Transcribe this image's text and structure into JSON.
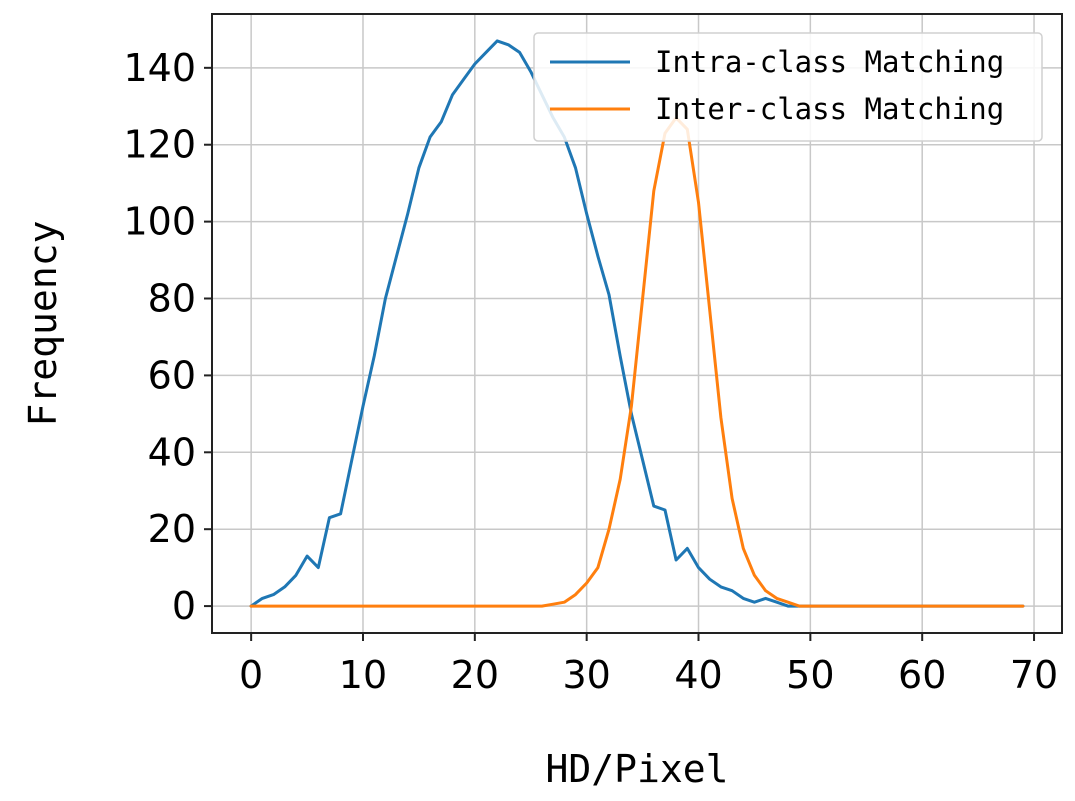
{
  "chart_data": {
    "type": "line",
    "title": "",
    "xlabel": "HD/Pixel",
    "ylabel": "Frequency",
    "xlim": [
      -3.5,
      72.5
    ],
    "ylim": [
      -7,
      154
    ],
    "xticks": [
      0,
      10,
      20,
      30,
      40,
      50,
      60,
      70
    ],
    "yticks": [
      0,
      20,
      40,
      60,
      80,
      100,
      120,
      140
    ],
    "grid": true,
    "legend_position": "top-right",
    "series": [
      {
        "name": "Intra-class Matching",
        "color": "#1f77b4",
        "x": [
          0,
          1,
          2,
          3,
          4,
          5,
          6,
          7,
          8,
          9,
          10,
          11,
          12,
          13,
          14,
          15,
          16,
          17,
          18,
          19,
          20,
          21,
          22,
          23,
          24,
          25,
          26,
          27,
          28,
          29,
          30,
          31,
          32,
          33,
          34,
          35,
          36,
          37,
          38,
          39,
          40,
          41,
          42,
          43,
          44,
          45,
          46,
          47,
          48,
          49,
          50,
          51,
          52,
          53,
          54,
          55,
          56,
          57,
          58,
          59,
          60,
          61,
          62,
          63,
          64,
          65,
          66,
          67,
          68,
          69
        ],
        "y": [
          0,
          2,
          3,
          5,
          8,
          13,
          10,
          23,
          24,
          38,
          52,
          65,
          80,
          91,
          102,
          114,
          122,
          126,
          133,
          137,
          141,
          144,
          147,
          146,
          144,
          139,
          133,
          127,
          122,
          114,
          102,
          91,
          81,
          65,
          50,
          38,
          26,
          25,
          12,
          15,
          10,
          7,
          5,
          4,
          2,
          1,
          2,
          1,
          0,
          0,
          0,
          0,
          0,
          0,
          0,
          0,
          0,
          0,
          0,
          0,
          0,
          0,
          0,
          0,
          0,
          0,
          0,
          0,
          0,
          0
        ]
      },
      {
        "name": "Inter-class Matching",
        "color": "#ff7f0e",
        "x": [
          0,
          1,
          2,
          3,
          4,
          5,
          6,
          7,
          8,
          9,
          10,
          11,
          12,
          13,
          14,
          15,
          16,
          17,
          18,
          19,
          20,
          21,
          22,
          23,
          24,
          25,
          26,
          27,
          28,
          29,
          30,
          31,
          32,
          33,
          34,
          35,
          36,
          37,
          38,
          39,
          40,
          41,
          42,
          43,
          44,
          45,
          46,
          47,
          48,
          49,
          50,
          51,
          52,
          53,
          54,
          55,
          56,
          57,
          58,
          59,
          60,
          61,
          62,
          63,
          64,
          65,
          66,
          67,
          68,
          69
        ],
        "y": [
          0,
          0,
          0,
          0,
          0,
          0,
          0,
          0,
          0,
          0,
          0,
          0,
          0,
          0,
          0,
          0,
          0,
          0,
          0,
          0,
          0,
          0,
          0,
          0,
          0,
          0,
          0,
          0.5,
          1,
          3,
          6,
          10,
          20,
          33,
          52,
          80,
          108,
          123,
          127,
          124,
          105,
          77,
          49,
          28,
          15,
          8,
          4,
          2,
          1,
          0,
          0,
          0,
          0,
          0,
          0,
          0,
          0,
          0,
          0,
          0,
          0,
          0,
          0,
          0,
          0,
          0,
          0,
          0,
          0,
          0
        ]
      }
    ]
  }
}
